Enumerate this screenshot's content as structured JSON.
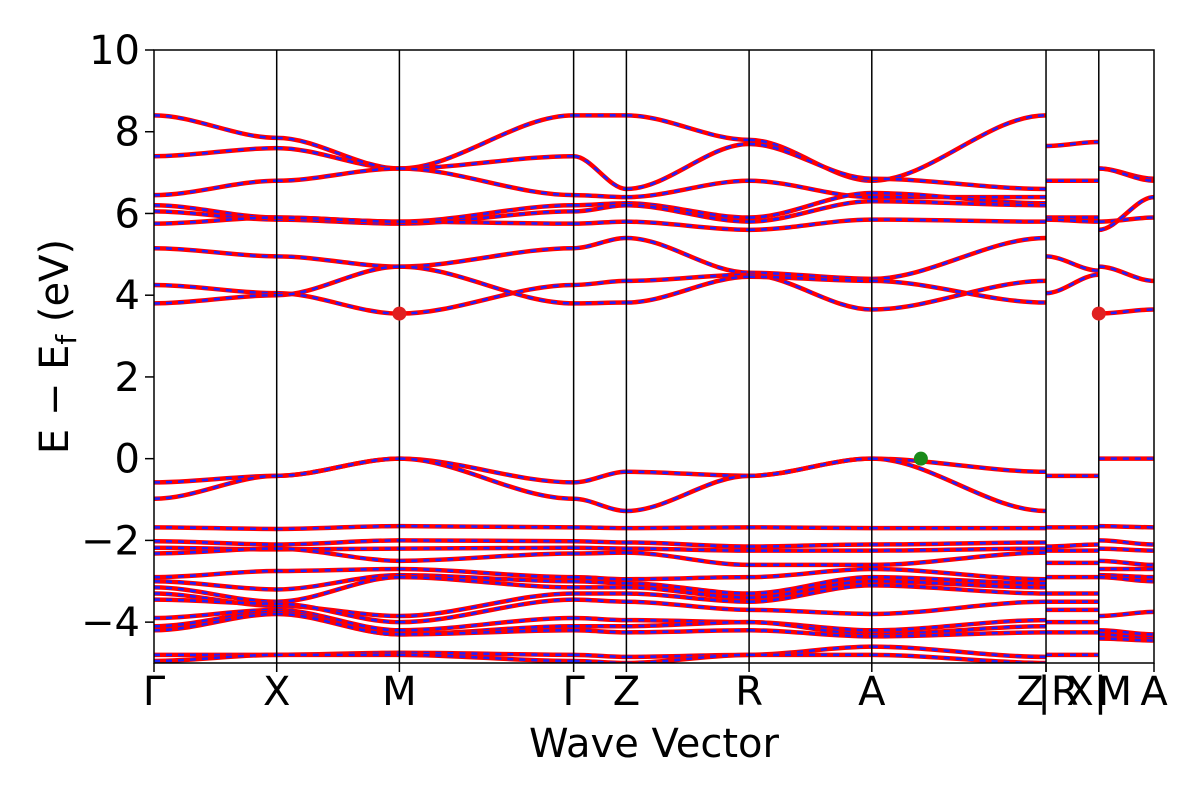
{
  "chart_data": {
    "type": "line",
    "xlabel": "Wave Vector",
    "ylabel": "E − E",
    "ylabel_sub": "f",
    "ylabel_unit": " (eV)",
    "ylim": [
      -5,
      10
    ],
    "xlim": [
      0,
      8.15
    ],
    "y_ticks": [
      {
        "value": 10,
        "label": "10"
      },
      {
        "value": 8,
        "label": "8"
      },
      {
        "value": 6,
        "label": "6"
      },
      {
        "value": 4,
        "label": "4"
      },
      {
        "value": 2,
        "label": "2"
      },
      {
        "value": 0,
        "label": "0"
      },
      {
        "value": -2,
        "label": "−2"
      },
      {
        "value": -4,
        "label": "−4"
      }
    ],
    "k_points": [
      {
        "x": 0.0,
        "label": "Γ"
      },
      {
        "x": 1.0,
        "label": "X"
      },
      {
        "x": 2.0,
        "label": "M"
      },
      {
        "x": 3.42,
        "label": "Γ"
      },
      {
        "x": 3.85,
        "label": "Z"
      },
      {
        "x": 4.85,
        "label": "R"
      },
      {
        "x": 5.85,
        "label": "A"
      },
      {
        "x": 7.27,
        "label": "Z"
      },
      {
        "x": 7.27,
        "label": "|R"
      },
      {
        "x": 7.7,
        "label": "X|"
      },
      {
        "x": 7.7,
        "label": "M"
      },
      {
        "x": 8.15,
        "label": "A"
      }
    ],
    "segments": [
      {
        "from": "Γ",
        "to": "X",
        "x0": 0.0,
        "x1": 1.0,
        "bands": [
          [
            8.4,
            7.85
          ],
          [
            7.4,
            7.6
          ],
          [
            6.45,
            6.8
          ],
          [
            6.2,
            5.9
          ],
          [
            6.05,
            5.85
          ],
          [
            5.75,
            5.9
          ],
          [
            5.15,
            4.95
          ],
          [
            4.25,
            4.05
          ],
          [
            3.8,
            4.0
          ],
          [
            -0.58,
            -0.42
          ],
          [
            -0.98,
            -0.42
          ],
          [
            -1.68,
            -1.72
          ],
          [
            -2.02,
            -2.1
          ],
          [
            -2.18,
            -2.22
          ],
          [
            -2.32,
            -2.2
          ],
          [
            -2.9,
            -2.75
          ],
          [
            -3.0,
            -3.2
          ],
          [
            -3.15,
            -3.5
          ],
          [
            -3.3,
            -3.6
          ],
          [
            -3.45,
            -3.55
          ],
          [
            -3.9,
            -3.7
          ],
          [
            -4.1,
            -3.75
          ],
          [
            -4.2,
            -3.8
          ],
          [
            -4.8,
            -4.8
          ],
          [
            -4.95,
            -4.8
          ]
        ]
      },
      {
        "from": "X",
        "to": "M",
        "x0": 1.0,
        "x1": 2.0,
        "bands": [
          [
            7.6,
            7.1
          ],
          [
            7.85,
            7.1
          ],
          [
            6.8,
            7.1
          ],
          [
            5.9,
            5.8
          ],
          [
            5.85,
            5.75
          ],
          [
            5.9,
            5.8
          ],
          [
            4.95,
            4.7
          ],
          [
            4.05,
            3.55
          ],
          [
            4.0,
            4.7
          ],
          [
            -0.42,
            0.0
          ],
          [
            -0.42,
            0.0
          ],
          [
            -1.72,
            -1.65
          ],
          [
            -2.1,
            -2.0
          ],
          [
            -2.22,
            -2.2
          ],
          [
            -2.2,
            -2.5
          ],
          [
            -2.75,
            -2.7
          ],
          [
            -3.2,
            -2.85
          ],
          [
            -3.5,
            -2.9
          ],
          [
            -3.6,
            -3.85
          ],
          [
            -3.55,
            -4.0
          ],
          [
            -3.7,
            -4.2
          ],
          [
            -3.75,
            -4.3
          ],
          [
            -3.8,
            -4.3
          ],
          [
            -4.8,
            -4.75
          ],
          [
            -4.8,
            -4.8
          ]
        ]
      },
      {
        "from": "M",
        "to": "Γ",
        "x0": 2.0,
        "x1": 3.42,
        "bands": [
          [
            7.1,
            8.4
          ],
          [
            7.1,
            7.4
          ],
          [
            7.1,
            6.45
          ],
          [
            5.8,
            6.2
          ],
          [
            5.75,
            6.05
          ],
          [
            5.8,
            5.75
          ],
          [
            4.7,
            5.15
          ],
          [
            3.55,
            4.25
          ],
          [
            4.7,
            3.8
          ],
          [
            0.0,
            -0.58
          ],
          [
            0.0,
            -0.98
          ],
          [
            -1.65,
            -1.68
          ],
          [
            -2.0,
            -2.02
          ],
          [
            -2.2,
            -2.18
          ],
          [
            -2.5,
            -2.32
          ],
          [
            -2.7,
            -2.9
          ],
          [
            -2.85,
            -3.0
          ],
          [
            -2.9,
            -3.15
          ],
          [
            -3.85,
            -3.3
          ],
          [
            -4.0,
            -3.45
          ],
          [
            -4.2,
            -3.9
          ],
          [
            -4.3,
            -4.1
          ],
          [
            -4.3,
            -4.2
          ],
          [
            -4.75,
            -4.8
          ],
          [
            -4.8,
            -4.95
          ]
        ]
      },
      {
        "from": "Γ",
        "to": "Z",
        "x0": 3.42,
        "x1": 3.85,
        "bands": [
          [
            8.4,
            8.4
          ],
          [
            7.4,
            6.6
          ],
          [
            6.45,
            6.4
          ],
          [
            6.2,
            6.25
          ],
          [
            6.05,
            6.2
          ],
          [
            5.75,
            5.8
          ],
          [
            5.15,
            5.4
          ],
          [
            4.25,
            4.35
          ],
          [
            3.8,
            3.82
          ],
          [
            -0.58,
            -0.32
          ],
          [
            -0.98,
            -1.28
          ],
          [
            -1.68,
            -1.7
          ],
          [
            -2.02,
            -2.05
          ],
          [
            -2.18,
            -2.2
          ],
          [
            -2.32,
            -2.3
          ],
          [
            -2.9,
            -2.95
          ],
          [
            -3.0,
            -3.05
          ],
          [
            -3.15,
            -3.15
          ],
          [
            -3.3,
            -3.3
          ],
          [
            -3.45,
            -3.5
          ],
          [
            -3.9,
            -3.95
          ],
          [
            -4.1,
            -4.1
          ],
          [
            -4.2,
            -4.25
          ],
          [
            -4.8,
            -4.85
          ],
          [
            -4.95,
            -5.0
          ]
        ]
      },
      {
        "from": "Z",
        "to": "R",
        "x0": 3.85,
        "x1": 4.85,
        "bands": [
          [
            8.4,
            7.8
          ],
          [
            6.6,
            7.7
          ],
          [
            6.4,
            6.8
          ],
          [
            6.25,
            5.9
          ],
          [
            6.2,
            5.8
          ],
          [
            5.8,
            5.6
          ],
          [
            5.4,
            4.55
          ],
          [
            4.35,
            4.5
          ],
          [
            3.82,
            4.45
          ],
          [
            -0.32,
            -0.42
          ],
          [
            -1.28,
            -0.42
          ],
          [
            -1.7,
            -1.68
          ],
          [
            -2.05,
            -2.15
          ],
          [
            -2.2,
            -2.25
          ],
          [
            -2.3,
            -2.6
          ],
          [
            -2.95,
            -2.9
          ],
          [
            -3.05,
            -3.3
          ],
          [
            -3.15,
            -3.4
          ],
          [
            -3.3,
            -3.5
          ],
          [
            -3.5,
            -3.7
          ],
          [
            -3.95,
            -4.0
          ],
          [
            -4.1,
            -4.0
          ],
          [
            -4.25,
            -4.2
          ],
          [
            -4.85,
            -4.8
          ],
          [
            -5.0,
            -4.8
          ]
        ]
      },
      {
        "from": "R",
        "to": "A",
        "x0": 4.85,
        "x1": 5.85,
        "bands": [
          [
            7.8,
            6.8
          ],
          [
            7.7,
            6.85
          ],
          [
            6.8,
            6.4
          ],
          [
            5.9,
            6.5
          ],
          [
            5.8,
            6.3
          ],
          [
            5.6,
            5.85
          ],
          [
            4.55,
            4.4
          ],
          [
            4.5,
            3.65
          ],
          [
            4.45,
            4.35
          ],
          [
            -0.42,
            0.0
          ],
          [
            -0.42,
            0.0
          ],
          [
            -1.68,
            -1.7
          ],
          [
            -2.15,
            -2.1
          ],
          [
            -2.25,
            -2.25
          ],
          [
            -2.6,
            -2.6
          ],
          [
            -2.9,
            -2.7
          ],
          [
            -3.3,
            -2.9
          ],
          [
            -3.4,
            -3.0
          ],
          [
            -3.5,
            -3.1
          ],
          [
            -3.7,
            -3.8
          ],
          [
            -4.0,
            -4.2
          ],
          [
            -4.0,
            -4.3
          ],
          [
            -4.2,
            -4.35
          ],
          [
            -4.8,
            -4.6
          ],
          [
            -4.8,
            -4.8
          ]
        ]
      },
      {
        "from": "A",
        "to": "Z",
        "x0": 5.85,
        "x1": 7.27,
        "bands": [
          [
            6.8,
            8.4
          ],
          [
            6.85,
            6.6
          ],
          [
            6.4,
            6.4
          ],
          [
            6.5,
            6.25
          ],
          [
            6.3,
            6.2
          ],
          [
            5.85,
            5.8
          ],
          [
            4.4,
            5.4
          ],
          [
            3.65,
            4.35
          ],
          [
            4.35,
            3.82
          ],
          [
            0.0,
            -0.32
          ],
          [
            0.0,
            -1.28
          ],
          [
            -1.7,
            -1.7
          ],
          [
            -2.1,
            -2.05
          ],
          [
            -2.25,
            -2.2
          ],
          [
            -2.6,
            -2.3
          ],
          [
            -2.7,
            -2.95
          ],
          [
            -2.9,
            -3.05
          ],
          [
            -3.0,
            -3.15
          ],
          [
            -3.1,
            -3.3
          ],
          [
            -3.8,
            -3.5
          ],
          [
            -4.2,
            -3.95
          ],
          [
            -4.3,
            -4.1
          ],
          [
            -4.35,
            -4.25
          ],
          [
            -4.6,
            -4.85
          ],
          [
            -4.8,
            -5.0
          ]
        ]
      },
      {
        "from": "R",
        "to": "X",
        "x0": 7.27,
        "x1": 7.7,
        "bands": [
          [
            7.65,
            7.75
          ],
          [
            6.8,
            6.8
          ],
          [
            5.9,
            5.9
          ],
          [
            5.85,
            5.8
          ],
          [
            4.95,
            4.6
          ],
          [
            4.05,
            4.5
          ],
          [
            -0.42,
            -0.42
          ],
          [
            -1.68,
            -1.68
          ],
          [
            -2.15,
            -2.1
          ],
          [
            -2.25,
            -2.25
          ],
          [
            -2.55,
            -2.55
          ],
          [
            -2.9,
            -2.9
          ],
          [
            -3.3,
            -3.3
          ],
          [
            -3.5,
            -3.5
          ],
          [
            -3.7,
            -3.7
          ],
          [
            -4.0,
            -4.0
          ],
          [
            -4.25,
            -4.25
          ],
          [
            -4.8,
            -4.8
          ]
        ]
      },
      {
        "from": "M",
        "to": "A",
        "x0": 7.7,
        "x1": 8.15,
        "bands": [
          [
            7.1,
            6.85
          ],
          [
            7.1,
            6.8
          ],
          [
            5.8,
            5.9
          ],
          [
            5.6,
            6.4
          ],
          [
            4.7,
            4.35
          ],
          [
            3.55,
            3.65
          ],
          [
            0.0,
            0.0
          ],
          [
            -1.65,
            -1.68
          ],
          [
            -2.0,
            -2.1
          ],
          [
            -2.2,
            -2.25
          ],
          [
            -2.5,
            -2.6
          ],
          [
            -2.7,
            -2.7
          ],
          [
            -2.85,
            -2.9
          ],
          [
            -2.9,
            -3.0
          ],
          [
            -3.85,
            -3.75
          ],
          [
            -4.2,
            -4.3
          ],
          [
            -4.3,
            -4.4
          ],
          [
            -4.4,
            -4.45
          ]
        ]
      }
    ],
    "markers": [
      {
        "x": 2.0,
        "y": 3.55,
        "color": "#e02020",
        "role": "cbm"
      },
      {
        "x": 7.7,
        "y": 3.55,
        "color": "#e02020",
        "role": "cbm"
      },
      {
        "x": 6.25,
        "y": 0.0,
        "color": "#1a8a1a",
        "role": "vbm"
      }
    ],
    "line_colors": {
      "primary": "#ff0000",
      "dashed": "#1f1fff",
      "vertical": "#000000"
    },
    "grid": false,
    "legend": "none"
  }
}
